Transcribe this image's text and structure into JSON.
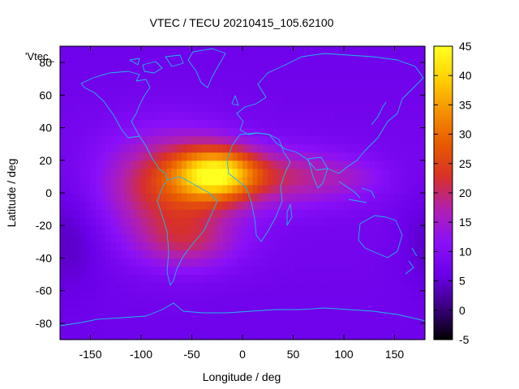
{
  "chart_data": {
    "type": "heatmap",
    "title": "VTEC / TECU 20210415_105.62100",
    "xlabel": "Longitude / deg",
    "ylabel": "Latitude / deg",
    "key_label": "'Vtec_",
    "xlim": [
      -180,
      180
    ],
    "ylim": [
      -90,
      90
    ],
    "x_ticks": [
      -150,
      -100,
      -50,
      0,
      50,
      100,
      150
    ],
    "y_ticks": [
      -80,
      -60,
      -40,
      -20,
      0,
      20,
      40,
      60,
      80
    ],
    "colorbar": {
      "range": [
        -5,
        45
      ],
      "ticks": [
        -5,
        0,
        5,
        10,
        15,
        20,
        25,
        30,
        35,
        40,
        45
      ],
      "palette": [
        "#000000",
        "#3a0080",
        "#6a00e8",
        "#8a10f8",
        "#b020b0",
        "#d8302a",
        "#e85a00",
        "#f59000",
        "#ffd000",
        "#ffff20"
      ]
    },
    "field": {
      "grid_step_deg": 5,
      "background_tecu": 8.5,
      "peaks": [
        {
          "lon": -25,
          "lat": 12,
          "amplitude": 27,
          "sigma_lon": 28,
          "sigma_lat": 11
        },
        {
          "lon": -70,
          "lat": 5,
          "amplitude": 16,
          "sigma_lon": 45,
          "sigma_lat": 22
        },
        {
          "lon": -55,
          "lat": -30,
          "amplitude": 9,
          "sigma_lon": 35,
          "sigma_lat": 12
        },
        {
          "lon": 45,
          "lat": 10,
          "amplitude": 10,
          "sigma_lon": 45,
          "sigma_lat": 12
        },
        {
          "lon": 110,
          "lat": 10,
          "amplitude": 3,
          "sigma_lon": 25,
          "sigma_lat": 8
        },
        {
          "lon": -170,
          "lat": -25,
          "amplitude": -4,
          "sigma_lon": 25,
          "sigma_lat": 25
        }
      ]
    }
  }
}
